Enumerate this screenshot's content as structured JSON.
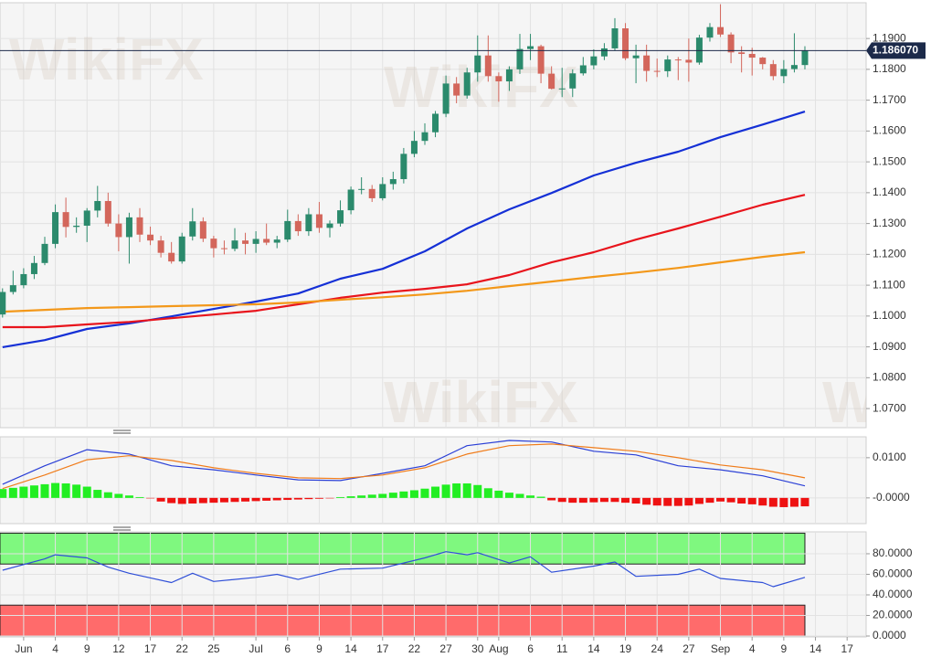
{
  "chart_data": [
    {
      "type": "candlestick",
      "watermark": "WikiFX",
      "x": [
        0,
        1,
        2,
        3,
        4,
        5,
        6,
        7,
        8,
        9,
        10,
        11,
        12,
        13,
        14,
        15,
        16,
        17,
        18,
        19,
        20,
        21,
        22,
        23,
        24,
        25,
        26,
        27,
        28,
        29,
        30,
        31,
        32,
        33,
        34,
        35,
        36,
        37,
        38,
        39,
        40,
        41,
        42,
        43,
        44,
        45,
        46,
        47,
        48,
        49,
        50,
        51,
        52,
        53,
        54,
        55,
        56,
        57,
        58,
        59,
        60,
        61,
        62,
        63,
        64,
        65,
        66,
        67,
        68,
        69,
        70,
        71,
        72,
        73,
        74,
        75,
        76
      ],
      "open": [
        1.1005,
        1.1078,
        1.11,
        1.1136,
        1.1172,
        1.1234,
        1.1337,
        1.1289,
        1.1293,
        1.1342,
        1.1373,
        1.13,
        1.1256,
        1.132,
        1.1264,
        1.1245,
        1.1205,
        1.1177,
        1.1258,
        1.1307,
        1.1251,
        1.122,
        1.1218,
        1.1245,
        1.1234,
        1.125,
        1.1238,
        1.1248,
        1.1308,
        1.1275,
        1.133,
        1.1286,
        1.13,
        1.1343,
        1.141,
        1.1412,
        1.1382,
        1.1428,
        1.1444,
        1.1526,
        1.1568,
        1.1596,
        1.1656,
        1.1754,
        1.1715,
        1.179,
        1.1845,
        1.1778,
        1.1761,
        1.18,
        1.1866,
        1.1875,
        1.1786,
        1.1737,
        1.1738,
        1.1787,
        1.1813,
        1.1842,
        1.1868,
        1.1933,
        1.1836,
        1.1845,
        1.1795,
        1.1794,
        1.1832,
        1.1831,
        1.1822,
        1.1903,
        1.1937,
        1.1913,
        1.1855,
        1.185,
        1.1838,
        1.1817,
        1.1778,
        1.1801,
        1.1814
      ],
      "high": [
        1.109,
        1.1147,
        1.1155,
        1.1195,
        1.1257,
        1.1362,
        1.1384,
        1.132,
        1.135,
        1.1422,
        1.14,
        1.133,
        1.1335,
        1.135,
        1.129,
        1.126,
        1.124,
        1.127,
        1.135,
        1.132,
        1.126,
        1.1245,
        1.1285,
        1.127,
        1.1275,
        1.13,
        1.126,
        1.1345,
        1.133,
        1.135,
        1.137,
        1.131,
        1.1375,
        1.142,
        1.145,
        1.1425,
        1.145,
        1.1468,
        1.1545,
        1.16,
        1.1625,
        1.1665,
        1.178,
        1.1775,
        1.1805,
        1.191,
        1.191,
        1.179,
        1.181,
        1.1915,
        1.1915,
        1.188,
        1.181,
        1.1805,
        1.18,
        1.184,
        1.1865,
        1.1885,
        1.1966,
        1.195,
        1.188,
        1.188,
        1.1835,
        1.1845,
        1.184,
        1.19,
        1.1912,
        1.195,
        1.2011,
        1.192,
        1.1875,
        1.187,
        1.184,
        1.183,
        1.183,
        1.1917,
        1.1875
      ],
      "low": [
        1.0995,
        1.107,
        1.109,
        1.112,
        1.1165,
        1.122,
        1.1255,
        1.127,
        1.124,
        1.132,
        1.129,
        1.121,
        1.117,
        1.124,
        1.123,
        1.119,
        1.117,
        1.117,
        1.1245,
        1.124,
        1.119,
        1.12,
        1.121,
        1.12,
        1.1205,
        1.123,
        1.122,
        1.124,
        1.126,
        1.126,
        1.127,
        1.1255,
        1.129,
        1.133,
        1.1395,
        1.137,
        1.1375,
        1.141,
        1.143,
        1.1515,
        1.1555,
        1.158,
        1.1645,
        1.169,
        1.1705,
        1.176,
        1.176,
        1.1695,
        1.173,
        1.1785,
        1.183,
        1.1755,
        1.1735,
        1.171,
        1.171,
        1.178,
        1.18,
        1.183,
        1.186,
        1.183,
        1.1755,
        1.176,
        1.1775,
        1.1775,
        1.1765,
        1.176,
        1.1815,
        1.189,
        1.1905,
        1.182,
        1.179,
        1.178,
        1.18,
        1.1765,
        1.1755,
        1.179,
        1.18
      ],
      "close": [
        1.1078,
        1.11,
        1.1136,
        1.1172,
        1.1234,
        1.1337,
        1.1289,
        1.1293,
        1.1342,
        1.1373,
        1.13,
        1.1256,
        1.132,
        1.1264,
        1.1245,
        1.1205,
        1.1177,
        1.1258,
        1.1307,
        1.1251,
        1.122,
        1.1218,
        1.1245,
        1.1234,
        1.125,
        1.1238,
        1.1248,
        1.1308,
        1.1275,
        1.133,
        1.1286,
        1.13,
        1.1343,
        1.141,
        1.1412,
        1.1382,
        1.1428,
        1.1444,
        1.1526,
        1.1568,
        1.1596,
        1.1656,
        1.1754,
        1.1715,
        1.179,
        1.1845,
        1.1778,
        1.1761,
        1.18,
        1.1866,
        1.1875,
        1.1786,
        1.1737,
        1.1738,
        1.1787,
        1.1813,
        1.1842,
        1.1868,
        1.1933,
        1.1836,
        1.1845,
        1.1795,
        1.1794,
        1.1832,
        1.1831,
        1.1822,
        1.1903,
        1.1937,
        1.1913,
        1.1855,
        1.185,
        1.1838,
        1.1817,
        1.1778,
        1.1801,
        1.1814,
        1.18607
      ],
      "up_color": "#2b8a6c",
      "down_color": "#d3665b",
      "series": [
        {
          "color": "#1530d6",
          "x": [
            0,
            4,
            8,
            12,
            16,
            20,
            24,
            28,
            32,
            36,
            40,
            44,
            48,
            52,
            56,
            60,
            64,
            68,
            72,
            76
          ],
          "values": [
            1.0899,
            1.0922,
            1.0958,
            1.0976,
            1.0999,
            1.1023,
            1.1047,
            1.1073,
            1.1121,
            1.1153,
            1.121,
            1.1284,
            1.1346,
            1.1399,
            1.1456,
            1.1497,
            1.1533,
            1.158,
            1.1621,
            1.1663
          ]
        },
        {
          "color": "#e8141c",
          "x": [
            0,
            4,
            8,
            12,
            16,
            20,
            24,
            28,
            32,
            36,
            40,
            44,
            48,
            52,
            56,
            60,
            64,
            68,
            72,
            76
          ],
          "values": [
            1.0964,
            1.0964,
            1.0973,
            1.0981,
            1.0993,
            1.1005,
            1.1017,
            1.1038,
            1.1059,
            1.1076,
            1.1088,
            1.1103,
            1.1133,
            1.1174,
            1.1207,
            1.1248,
            1.1284,
            1.1322,
            1.1361,
            1.1393
          ]
        },
        {
          "color": "#f3981a",
          "x": [
            0,
            4,
            8,
            12,
            16,
            20,
            24,
            28,
            32,
            36,
            40,
            44,
            48,
            52,
            56,
            60,
            64,
            68,
            72,
            76
          ],
          "values": [
            1.1014,
            1.102,
            1.1026,
            1.1029,
            1.1032,
            1.1035,
            1.1038,
            1.1044,
            1.1053,
            1.1061,
            1.107,
            1.1082,
            1.1097,
            1.1112,
            1.1127,
            1.1141,
            1.1156,
            1.1174,
            1.1192,
            1.1207
          ]
        }
      ],
      "last_price": {
        "value": 1.18607,
        "label": "1.186070"
      },
      "xlim": [
        -0.24,
        81.8
      ],
      "ylim": [
        1.0638,
        1.2016
      ],
      "yticks": [
        {
          "value": 1.07,
          "label": "1.0700"
        },
        {
          "value": 1.08,
          "label": "1.0800"
        },
        {
          "value": 1.09,
          "label": "1.0900"
        },
        {
          "value": 1.1,
          "label": "1.1000"
        },
        {
          "value": 1.11,
          "label": "1.1100"
        },
        {
          "value": 1.12,
          "label": "1.1200"
        },
        {
          "value": 1.13,
          "label": "1.1300"
        },
        {
          "value": 1.14,
          "label": "1.1400"
        },
        {
          "value": 1.15,
          "label": "1.1500"
        },
        {
          "value": 1.16,
          "label": "1.1600"
        },
        {
          "value": 1.17,
          "label": "1.1700"
        },
        {
          "value": 1.18,
          "label": "1.1800"
        },
        {
          "value": 1.19,
          "label": "1.1900"
        }
      ],
      "grid": true
    },
    {
      "type": "macd",
      "series": [
        {
          "color": "#2a3fd6",
          "x": [
            0,
            4,
            8,
            12,
            16,
            20,
            24,
            28,
            32,
            36,
            40,
            44,
            48,
            52,
            56,
            60,
            64,
            68,
            72,
            76
          ],
          "values": [
            0.0034,
            0.008,
            0.012,
            0.0109,
            0.008,
            0.007,
            0.0057,
            0.0045,
            0.0043,
            0.0061,
            0.008,
            0.013,
            0.0143,
            0.0139,
            0.0116,
            0.0107,
            0.008,
            0.007,
            0.0055,
            0.003
          ]
        },
        {
          "color": "#f07c1a",
          "x": [
            0,
            4,
            8,
            12,
            16,
            20,
            24,
            28,
            32,
            36,
            40,
            44,
            48,
            52,
            56,
            60,
            64,
            68,
            72,
            76
          ],
          "values": [
            0.0023,
            0.0057,
            0.0095,
            0.0105,
            0.0093,
            0.0075,
            0.0061,
            0.005,
            0.0048,
            0.0057,
            0.0075,
            0.0109,
            0.013,
            0.0134,
            0.0125,
            0.0116,
            0.01,
            0.0082,
            0.007,
            0.005
          ]
        }
      ],
      "histogram": {
        "positive_color": "#22ee22",
        "negative_color": "#ee1111",
        "x": [
          0,
          1,
          2,
          3,
          4,
          5,
          6,
          7,
          8,
          9,
          10,
          11,
          12,
          13,
          14,
          15,
          16,
          17,
          18,
          19,
          20,
          21,
          22,
          23,
          24,
          25,
          26,
          27,
          28,
          29,
          30,
          31,
          32,
          33,
          34,
          35,
          36,
          37,
          38,
          39,
          40,
          41,
          42,
          43,
          44,
          45,
          46,
          47,
          48,
          49,
          50,
          51,
          52,
          53,
          54,
          55,
          56,
          57,
          58,
          59,
          60,
          61,
          62,
          63,
          64,
          65,
          66,
          67,
          68,
          69,
          70,
          71,
          72,
          73,
          74,
          75,
          76
        ],
        "values": [
          0.0022,
          0.0025,
          0.0028,
          0.0031,
          0.0034,
          0.0037,
          0.0036,
          0.0033,
          0.0028,
          0.002,
          0.0014,
          0.001,
          0.0006,
          0.0002,
          -0.0001,
          -0.0009,
          -0.0013,
          -0.0015,
          -0.0014,
          -0.0013,
          -0.0012,
          -0.0011,
          -0.001,
          -0.0009,
          -0.0008,
          -0.0007,
          -0.0006,
          -0.0005,
          -0.0004,
          -0.0003,
          -0.0002,
          -0.0001,
          0.0002,
          0.0004,
          0.0006,
          0.0008,
          0.001,
          0.0013,
          0.0016,
          0.0019,
          0.0023,
          0.0028,
          0.0033,
          0.0036,
          0.0036,
          0.0032,
          0.0024,
          0.0018,
          0.0013,
          0.001,
          0.0006,
          0.0003,
          -0.0006,
          -0.001,
          -0.0012,
          -0.0012,
          -0.0011,
          -0.001,
          -0.001,
          -0.0012,
          -0.0014,
          -0.0017,
          -0.0019,
          -0.002,
          -0.002,
          -0.0019,
          -0.0015,
          -0.0012,
          -0.0009,
          -0.0011,
          -0.0014,
          -0.0016,
          -0.0019,
          -0.0022,
          -0.0023,
          -0.0022,
          -0.0021
        ]
      },
      "xlim": [
        -0.24,
        81.8
      ],
      "ylim": [
        -0.0064,
        0.0152
      ],
      "yticks": [
        {
          "value": 0,
          "label": "-0.0000"
        },
        {
          "value": 0.01,
          "label": "0.0100"
        }
      ],
      "grid": true
    },
    {
      "type": "line",
      "series": [
        {
          "color": "#2f4fd8",
          "x": [
            0,
            4,
            5,
            8,
            10,
            12,
            16,
            18,
            20,
            24,
            26,
            28,
            32,
            36,
            40,
            42,
            44,
            45,
            48,
            50,
            52,
            56,
            58,
            60,
            64,
            66,
            68,
            72,
            73,
            76
          ],
          "values": [
            64,
            75,
            79,
            76,
            67,
            61,
            52,
            61,
            53,
            57,
            60,
            55,
            65,
            66,
            76,
            82,
            79,
            81,
            71,
            77,
            62,
            68,
            72,
            58,
            60,
            65,
            56,
            52,
            48,
            57
          ]
        }
      ],
      "zones": [
        {
          "from": 70,
          "to": 100,
          "color": "#7ff87f"
        },
        {
          "from": 0,
          "to": 30,
          "color": "#ff6b6b"
        }
      ],
      "xlim": [
        -0.24,
        81.8
      ],
      "ylim": [
        -0.9,
        101.3
      ],
      "yticks": [
        {
          "value": 0,
          "label": "0.0000"
        },
        {
          "value": 20,
          "label": "20.0000"
        },
        {
          "value": 40,
          "label": "40.0000"
        },
        {
          "value": 60,
          "label": "60.0000"
        },
        {
          "value": 80,
          "label": "80.0000"
        }
      ],
      "xticks": [
        {
          "value": 2,
          "label": "Jun"
        },
        {
          "value": 5,
          "label": "4"
        },
        {
          "value": 8,
          "label": "9"
        },
        {
          "value": 11,
          "label": "12"
        },
        {
          "value": 14,
          "label": "17"
        },
        {
          "value": 17,
          "label": "22"
        },
        {
          "value": 20,
          "label": "25"
        },
        {
          "value": 24,
          "label": "Jul"
        },
        {
          "value": 27,
          "label": "6"
        },
        {
          "value": 30,
          "label": "9"
        },
        {
          "value": 33,
          "label": "14"
        },
        {
          "value": 36,
          "label": "17"
        },
        {
          "value": 39,
          "label": "22"
        },
        {
          "value": 42,
          "label": "27"
        },
        {
          "value": 45,
          "label": "30"
        },
        {
          "value": 47,
          "label": "Aug"
        },
        {
          "value": 50,
          "label": "6"
        },
        {
          "value": 53,
          "label": "11"
        },
        {
          "value": 56,
          "label": "14"
        },
        {
          "value": 59,
          "label": "19"
        },
        {
          "value": 62,
          "label": "24"
        },
        {
          "value": 65,
          "label": "27"
        },
        {
          "value": 68,
          "label": "Sep"
        },
        {
          "value": 71,
          "label": "4"
        },
        {
          "value": 74,
          "label": "9"
        },
        {
          "value": 77,
          "label": "14"
        },
        {
          "value": 80,
          "label": "17"
        }
      ],
      "grid": true
    }
  ]
}
